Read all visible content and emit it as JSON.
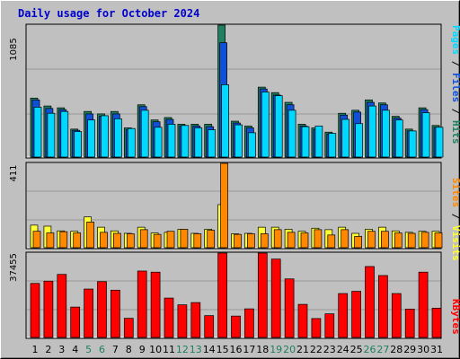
{
  "title": "Daily usage for October 2024",
  "colors": {
    "hits": "#1e8060",
    "files": "#1050d8",
    "pages": "#00d8ff",
    "visits": "#ffff33",
    "sites": "#ff8800",
    "kbytes": "#ff0000",
    "title": "#0000cc",
    "weekend_day": "#1e8060",
    "weekday": "#000000",
    "panel": "#c0c0c0",
    "gridline": "#999999"
  },
  "legends": {
    "top": [
      {
        "text": "Pages",
        "color": "#00d8ff"
      },
      {
        "text": " / ",
        "color": "#000000"
      },
      {
        "text": "Files",
        "color": "#1050d8"
      },
      {
        "text": " / ",
        "color": "#000000"
      },
      {
        "text": "Hits",
        "color": "#1e8060"
      }
    ],
    "mid": [
      {
        "text": "Sites",
        "color": "#ff8800"
      },
      {
        "text": " / ",
        "color": "#000000"
      },
      {
        "text": "Visits",
        "color": "#ffff33"
      }
    ],
    "bottom": [
      {
        "text": "KBytes",
        "color": "#ff0000"
      }
    ]
  },
  "chart_data": [
    {
      "type": "bar",
      "panel": "top",
      "y_max_label": "1085",
      "ylim": [
        0,
        1085
      ],
      "categories": [
        "1",
        "2",
        "3",
        "4",
        "5",
        "6",
        "7",
        "8",
        "9",
        "10",
        "11",
        "12",
        "13",
        "14",
        "15",
        "16",
        "17",
        "18",
        "19",
        "20",
        "21",
        "22",
        "23",
        "24",
        "25",
        "26",
        "27",
        "28",
        "29",
        "30",
        "31"
      ],
      "weekend_days": [
        "5",
        "6",
        "12",
        "13",
        "19",
        "20",
        "26",
        "27"
      ],
      "series": [
        {
          "name": "Hits",
          "values": [
            485,
            420,
            405,
            230,
            375,
            355,
            375,
            240,
            430,
            305,
            325,
            270,
            270,
            270,
            1085,
            295,
            255,
            575,
            530,
            450,
            270,
            240,
            205,
            360,
            385,
            470,
            445,
            335,
            230,
            405,
            260
          ]
        },
        {
          "name": "Files",
          "values": [
            470,
            400,
            390,
            220,
            355,
            335,
            355,
            225,
            415,
            290,
            310,
            255,
            255,
            250,
            940,
            280,
            240,
            560,
            510,
            430,
            255,
            225,
            190,
            345,
            370,
            450,
            430,
            320,
            215,
            390,
            245
          ]
        },
        {
          "name": "Pages",
          "values": [
            410,
            360,
            375,
            210,
            305,
            340,
            315,
            235,
            385,
            245,
            270,
            260,
            240,
            225,
            595,
            265,
            200,
            535,
            505,
            385,
            250,
            255,
            195,
            310,
            275,
            420,
            385,
            305,
            215,
            365,
            245
          ]
        }
      ]
    },
    {
      "type": "bar",
      "panel": "middle",
      "y_max_label": "411",
      "ylim": [
        0,
        411
      ],
      "categories": [
        "1",
        "2",
        "3",
        "4",
        "5",
        "6",
        "7",
        "8",
        "9",
        "10",
        "11",
        "12",
        "13",
        "14",
        "15",
        "16",
        "17",
        "18",
        "19",
        "20",
        "21",
        "22",
        "23",
        "24",
        "25",
        "26",
        "27",
        "28",
        "29",
        "30",
        "31"
      ],
      "series": [
        {
          "name": "Visits",
          "values": [
            110,
            105,
            82,
            80,
            150,
            100,
            82,
            70,
            100,
            72,
            75,
            90,
            70,
            90,
            210,
            68,
            70,
            100,
            100,
            90,
            80,
            95,
            88,
            100,
            70,
            90,
            100,
            82,
            75,
            80,
            80
          ]
        },
        {
          "name": "Sites",
          "values": [
            80,
            72,
            78,
            72,
            125,
            75,
            70,
            68,
            88,
            65,
            80,
            90,
            68,
            85,
            411,
            65,
            68,
            68,
            88,
            75,
            72,
            88,
            62,
            88,
            55,
            80,
            80,
            72,
            70,
            75,
            72
          ]
        }
      ]
    },
    {
      "type": "bar",
      "panel": "bottom",
      "y_max_label": "37455",
      "ylim": [
        0,
        37455
      ],
      "categories": [
        "1",
        "2",
        "3",
        "4",
        "5",
        "6",
        "7",
        "8",
        "9",
        "10",
        "11",
        "12",
        "13",
        "14",
        "15",
        "16",
        "17",
        "18",
        "19",
        "20",
        "21",
        "22",
        "23",
        "24",
        "25",
        "26",
        "27",
        "28",
        "29",
        "30",
        "31"
      ],
      "series": [
        {
          "name": "KBytes",
          "values": [
            24000,
            25000,
            28000,
            13500,
            21500,
            24800,
            21000,
            8500,
            29500,
            29000,
            17500,
            14500,
            15500,
            9700,
            37455,
            9500,
            12700,
            37455,
            34800,
            26000,
            14700,
            8400,
            10500,
            19500,
            20500,
            31500,
            27500,
            19500,
            12600,
            29000,
            13000
          ]
        }
      ]
    }
  ]
}
